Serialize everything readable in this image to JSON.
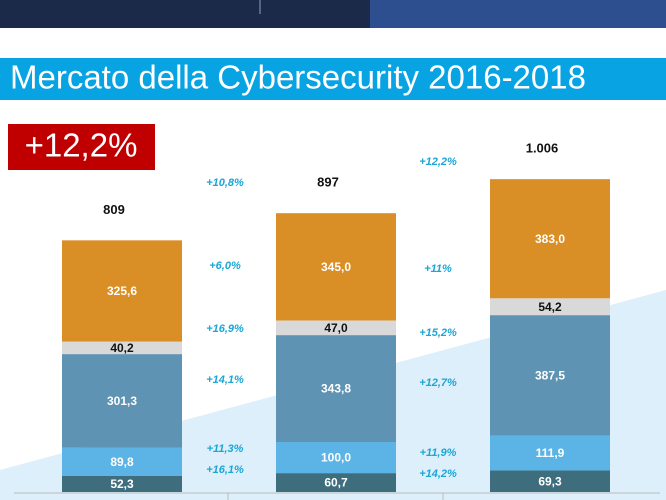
{
  "chart_data": {
    "type": "stacked-bar",
    "title": "Mercato della Cybersecurity 2016-2018",
    "badge": "+12,2%",
    "categories": [
      null,
      null,
      null
    ],
    "series": [
      {
        "color": "#3e6e7e",
        "values": [
          52.3,
          60.7,
          69.3
        ],
        "value_labels": [
          "52,3",
          "60,7",
          "69,3"
        ]
      },
      {
        "color": "#5bb4e5",
        "values": [
          89.8,
          100.0,
          111.9
        ],
        "value_labels": [
          "89,8",
          "100,0",
          "111,9"
        ]
      },
      {
        "color": "#5f93b3",
        "values": [
          301.3,
          343.8,
          387.5
        ],
        "value_labels": [
          "301,3",
          "343,8",
          "387,5"
        ]
      },
      {
        "color": "#d9d9d9",
        "values": [
          40.2,
          47.0,
          54.2
        ],
        "value_labels": [
          "40,2",
          "47,0",
          "54,2"
        ]
      },
      {
        "color": "#d98f26",
        "values": [
          325.6,
          345.0,
          383.0
        ],
        "value_labels": [
          "325,6",
          "345,0",
          "383,0"
        ]
      }
    ],
    "totals": {
      "values": [
        809,
        897,
        1006
      ],
      "value_labels": [
        "809",
        "897",
        "1.006"
      ]
    },
    "annotations": [
      [
        "+10,8%",
        "+6,0%",
        "+16,9%",
        "+14,1%",
        "+11,3%",
        "+16,1%"
      ],
      [
        "+12,2%",
        "+11%",
        "+15,2%",
        "+12,7%",
        "+11,9%",
        "+14,2%"
      ]
    ]
  }
}
